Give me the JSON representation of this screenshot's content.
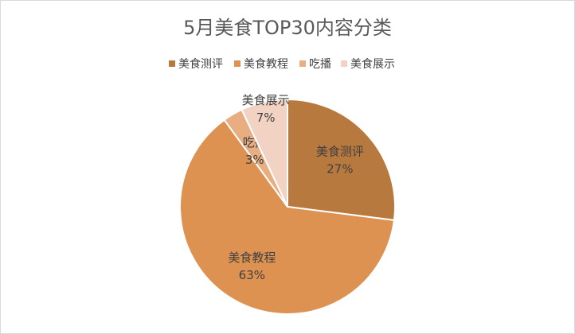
{
  "chart_data": {
    "type": "pie",
    "title": "5月美食TOP30内容分类",
    "categories": [
      "美食测评",
      "美食教程",
      "吃播",
      "美食展示"
    ],
    "values": [
      27,
      63,
      3,
      7
    ],
    "value_labels": [
      "27%",
      "63%",
      "3%",
      "7%"
    ],
    "colors": [
      "#b8793f",
      "#dd9252",
      "#e8ad80",
      "#f2d2c2"
    ],
    "legend": "top"
  }
}
